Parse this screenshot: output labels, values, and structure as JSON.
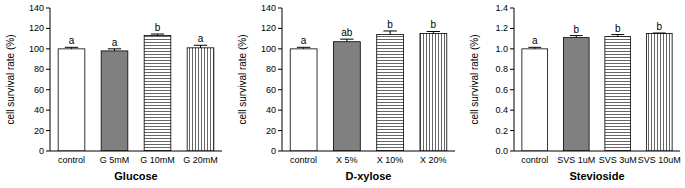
{
  "chart_data": [
    {
      "type": "bar",
      "title": "Glucose",
      "y_label": "cell survival rate (%)",
      "categories": [
        "control",
        "G 5mM",
        "G 10mM",
        "G 20mM"
      ],
      "values": [
        100,
        98,
        113,
        101
      ],
      "errors": [
        1.5,
        2,
        1.5,
        2.5
      ],
      "annotations": [
        "a",
        "a",
        "b",
        "a"
      ],
      "colors": [
        "#ffffff",
        "#808080",
        "#ffffff",
        "#ffffff"
      ],
      "ylim": [
        0,
        140
      ],
      "yticks": [
        0,
        20,
        40,
        60,
        80,
        100,
        120,
        140
      ],
      "grid": false
    },
    {
      "type": "bar",
      "title": "D-xylose",
      "y_label": "cell survival rate (%)",
      "categories": [
        "control",
        "X 5%",
        "X 10%",
        "X 20%"
      ],
      "values": [
        100,
        107,
        114,
        115
      ],
      "errors": [
        1.5,
        2.5,
        3.5,
        2
      ],
      "annotations": [
        "a",
        "ab",
        "b",
        "b"
      ],
      "colors": [
        "#ffffff",
        "#808080",
        "#ffffff",
        "#ffffff"
      ],
      "ylim": [
        0,
        140
      ],
      "yticks": [
        0,
        20,
        40,
        60,
        80,
        100,
        120,
        140
      ],
      "grid": false
    },
    {
      "type": "bar",
      "title": "Stevioside",
      "y_label": "cell survival rate (%)",
      "categories": [
        "control",
        "SVS 1uM",
        "SVS 3uM",
        "SVS 10uM"
      ],
      "values": [
        1.0,
        1.11,
        1.12,
        1.15
      ],
      "errors": [
        0.015,
        0.02,
        0.02,
        0.005
      ],
      "annotations": [
        "a",
        "b",
        "b",
        "b"
      ],
      "colors": [
        "#ffffff",
        "#808080",
        "#ffffff",
        "#ffffff"
      ],
      "ylim": [
        0,
        1.4
      ],
      "yticks": [
        {
          "value": 0,
          "label": "0.0"
        },
        0.2,
        0.4,
        0.6,
        0.8,
        {
          "value": 1.0,
          "label": "1.0"
        },
        1.2,
        1.4
      ],
      "grid": false
    }
  ]
}
